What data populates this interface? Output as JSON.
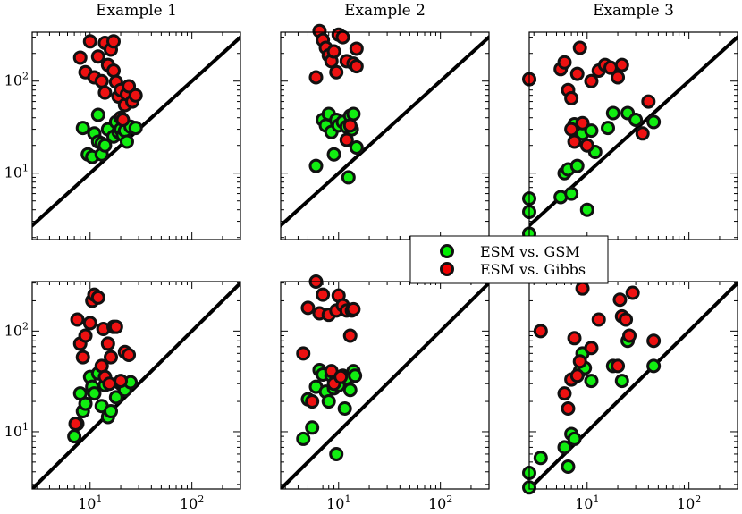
{
  "chart_data": {
    "type": "scatter",
    "scale": "log-log",
    "xlim": [
      2.7,
      300
    ],
    "ylim_top_row": [
      1.9,
      340
    ],
    "ylim_bottom_row": [
      2.7,
      310
    ],
    "x_tick_labels": [
      {
        "base": "10",
        "exp": "1",
        "value": 10
      },
      {
        "base": "10",
        "exp": "2",
        "value": 100
      }
    ],
    "y_tick_labels": [
      {
        "base": "10",
        "exp": "1",
        "value": 10
      },
      {
        "base": "10",
        "exp": "2",
        "value": 100
      }
    ],
    "diagonal": "y = x",
    "legend": {
      "position": "center",
      "entries": [
        {
          "label": "ESM vs. GSM",
          "color": "#00ee00"
        },
        {
          "label": "ESM vs. Gibbs",
          "color": "#ee0000"
        }
      ]
    },
    "series_colors": {
      "gsm": "#11ee11",
      "gibbs": "#ee1111",
      "edge": "#111111"
    },
    "panels": [
      {
        "title": "Example 1",
        "gsm": [
          [
            8.5,
            31
          ],
          [
            9.5,
            16
          ],
          [
            10.5,
            15
          ],
          [
            11,
            27
          ],
          [
            12,
            43
          ],
          [
            12,
            22
          ],
          [
            13,
            21
          ],
          [
            13,
            16
          ],
          [
            14,
            20
          ],
          [
            15,
            30
          ],
          [
            17,
            25
          ],
          [
            18,
            36
          ],
          [
            19,
            28
          ],
          [
            20,
            30
          ],
          [
            21,
            26
          ],
          [
            22,
            29
          ],
          [
            23,
            22
          ],
          [
            25,
            32
          ],
          [
            28,
            31
          ]
        ],
        "gibbs": [
          [
            8,
            180
          ],
          [
            9,
            125
          ],
          [
            10,
            270
          ],
          [
            11,
            110
          ],
          [
            12,
            185
          ],
          [
            13,
            100
          ],
          [
            14,
            260
          ],
          [
            14,
            75
          ],
          [
            15,
            150
          ],
          [
            16,
            220
          ],
          [
            17,
            270
          ],
          [
            17,
            130
          ],
          [
            18,
            98
          ],
          [
            19,
            68
          ],
          [
            20,
            80
          ],
          [
            20,
            40
          ],
          [
            21,
            38
          ],
          [
            22,
            55
          ],
          [
            23,
            72
          ],
          [
            24,
            88
          ],
          [
            26,
            60
          ],
          [
            28,
            70
          ]
        ]
      },
      {
        "title": "Example 2",
        "gsm": [
          [
            6,
            12
          ],
          [
            7,
            38
          ],
          [
            7.5,
            33
          ],
          [
            8,
            44
          ],
          [
            8.5,
            28
          ],
          [
            9,
            16
          ],
          [
            9.5,
            38
          ],
          [
            10,
            33
          ],
          [
            11,
            36
          ],
          [
            12,
            32
          ],
          [
            12.5,
            9
          ],
          [
            13,
            42
          ],
          [
            13.5,
            30
          ],
          [
            14,
            44
          ],
          [
            15,
            19
          ]
        ],
        "gibbs": [
          [
            6,
            110
          ],
          [
            6.5,
            350
          ],
          [
            7,
            280
          ],
          [
            7.5,
            230
          ],
          [
            8,
            190
          ],
          [
            8.5,
            165
          ],
          [
            9,
            210
          ],
          [
            9.5,
            125
          ],
          [
            10,
            320
          ],
          [
            11,
            300
          ],
          [
            12,
            165
          ],
          [
            12,
            23
          ],
          [
            13,
            33
          ],
          [
            14,
            155
          ],
          [
            15,
            225
          ],
          [
            15,
            145
          ]
        ],
        "gsm_at_left_edge": [],
        "gibbs_at_left_edge": []
      },
      {
        "title": "Example 3",
        "gsm": [
          [
            5.5,
            5.5
          ],
          [
            6,
            10
          ],
          [
            6.5,
            11
          ],
          [
            7,
            6
          ],
          [
            7.5,
            34
          ],
          [
            8,
            12
          ],
          [
            9,
            27
          ],
          [
            10,
            4
          ],
          [
            11,
            29
          ],
          [
            12,
            17
          ],
          [
            16,
            31
          ],
          [
            18,
            45
          ],
          [
            25,
            45
          ],
          [
            30,
            38
          ],
          [
            45,
            36
          ]
        ],
        "gibbs": [
          [
            5.5,
            135
          ],
          [
            6,
            160
          ],
          [
            6.5,
            80
          ],
          [
            7,
            65
          ],
          [
            7,
            30
          ],
          [
            7.5,
            22
          ],
          [
            8,
            120
          ],
          [
            8.5,
            230
          ],
          [
            9,
            35
          ],
          [
            10,
            20
          ],
          [
            11,
            100
          ],
          [
            13,
            130
          ],
          [
            15,
            150
          ],
          [
            17,
            140
          ],
          [
            20,
            110
          ],
          [
            22,
            150
          ],
          [
            35,
            27
          ],
          [
            40,
            60
          ]
        ],
        "gsm_at_left_edge": [
          5.3,
          3.8,
          2.2
        ],
        "gibbs_at_left_edge": [
          105
        ]
      },
      {
        "title": "",
        "gsm": [
          [
            7,
            9
          ],
          [
            7.5,
            12
          ],
          [
            8,
            24
          ],
          [
            8.5,
            16
          ],
          [
            9,
            19
          ],
          [
            10,
            35
          ],
          [
            10.5,
            28
          ],
          [
            11,
            24
          ],
          [
            12,
            38
          ],
          [
            13,
            18
          ],
          [
            14,
            29
          ],
          [
            15,
            14
          ],
          [
            16,
            16
          ],
          [
            18,
            22
          ],
          [
            20,
            30
          ],
          [
            22,
            26
          ],
          [
            25,
            31
          ]
        ],
        "gibbs": [
          [
            7.2,
            12
          ],
          [
            7.5,
            130
          ],
          [
            8,
            75
          ],
          [
            8.5,
            55
          ],
          [
            9,
            90
          ],
          [
            10,
            120
          ],
          [
            10.5,
            200
          ],
          [
            11,
            230
          ],
          [
            12,
            215
          ],
          [
            13,
            45
          ],
          [
            13.5,
            105
          ],
          [
            14,
            35
          ],
          [
            15,
            75
          ],
          [
            15.5,
            30
          ],
          [
            16,
            55
          ],
          [
            17,
            110
          ],
          [
            18,
            110
          ],
          [
            20,
            32
          ],
          [
            22,
            62
          ],
          [
            24,
            58
          ]
        ]
      },
      {
        "title": "",
        "gsm": [
          [
            4.5,
            8.5
          ],
          [
            5,
            21
          ],
          [
            5.5,
            11
          ],
          [
            6,
            28
          ],
          [
            6.5,
            41
          ],
          [
            7,
            37
          ],
          [
            7.5,
            25
          ],
          [
            8,
            20
          ],
          [
            8.5,
            36
          ],
          [
            9,
            27
          ],
          [
            9.5,
            6
          ],
          [
            10,
            29
          ],
          [
            11,
            36
          ],
          [
            11.5,
            17
          ],
          [
            12,
            34
          ],
          [
            13,
            26
          ],
          [
            14,
            40
          ],
          [
            14.5,
            36
          ]
        ],
        "gibbs": [
          [
            4.5,
            60
          ],
          [
            5,
            170
          ],
          [
            5.5,
            20
          ],
          [
            6,
            310
          ],
          [
            6.5,
            150
          ],
          [
            7,
            230
          ],
          [
            8,
            145
          ],
          [
            8.5,
            40
          ],
          [
            9,
            30
          ],
          [
            9.5,
            160
          ],
          [
            10,
            225
          ],
          [
            10.5,
            35
          ],
          [
            11,
            180
          ],
          [
            12,
            160
          ],
          [
            13,
            90
          ],
          [
            13.5,
            160
          ],
          [
            14,
            165
          ]
        ]
      },
      {
        "title": "",
        "gsm": [
          [
            3.5,
            5.5
          ],
          [
            6,
            7
          ],
          [
            6.5,
            4.5
          ],
          [
            7,
            9.5
          ],
          [
            7.5,
            8.5
          ],
          [
            8.5,
            40
          ],
          [
            9,
            60
          ],
          [
            9.5,
            43
          ],
          [
            11,
            32
          ],
          [
            18,
            45
          ],
          [
            22,
            32
          ],
          [
            25,
            80
          ],
          [
            45,
            45
          ]
        ],
        "gibbs": [
          [
            3.5,
            100
          ],
          [
            6,
            24
          ],
          [
            6.5,
            17
          ],
          [
            7,
            33
          ],
          [
            7.5,
            85
          ],
          [
            8,
            36
          ],
          [
            8.5,
            50
          ],
          [
            9,
            265
          ],
          [
            11,
            68
          ],
          [
            13,
            130
          ],
          [
            20,
            45
          ],
          [
            21,
            205
          ],
          [
            22,
            140
          ],
          [
            24,
            130
          ],
          [
            26,
            90
          ],
          [
            28,
            240
          ],
          [
            45,
            80
          ]
        ],
        "gsm_at_left_edge": [
          3.9,
          2.8
        ],
        "gibbs_at_left_edge": []
      }
    ]
  }
}
